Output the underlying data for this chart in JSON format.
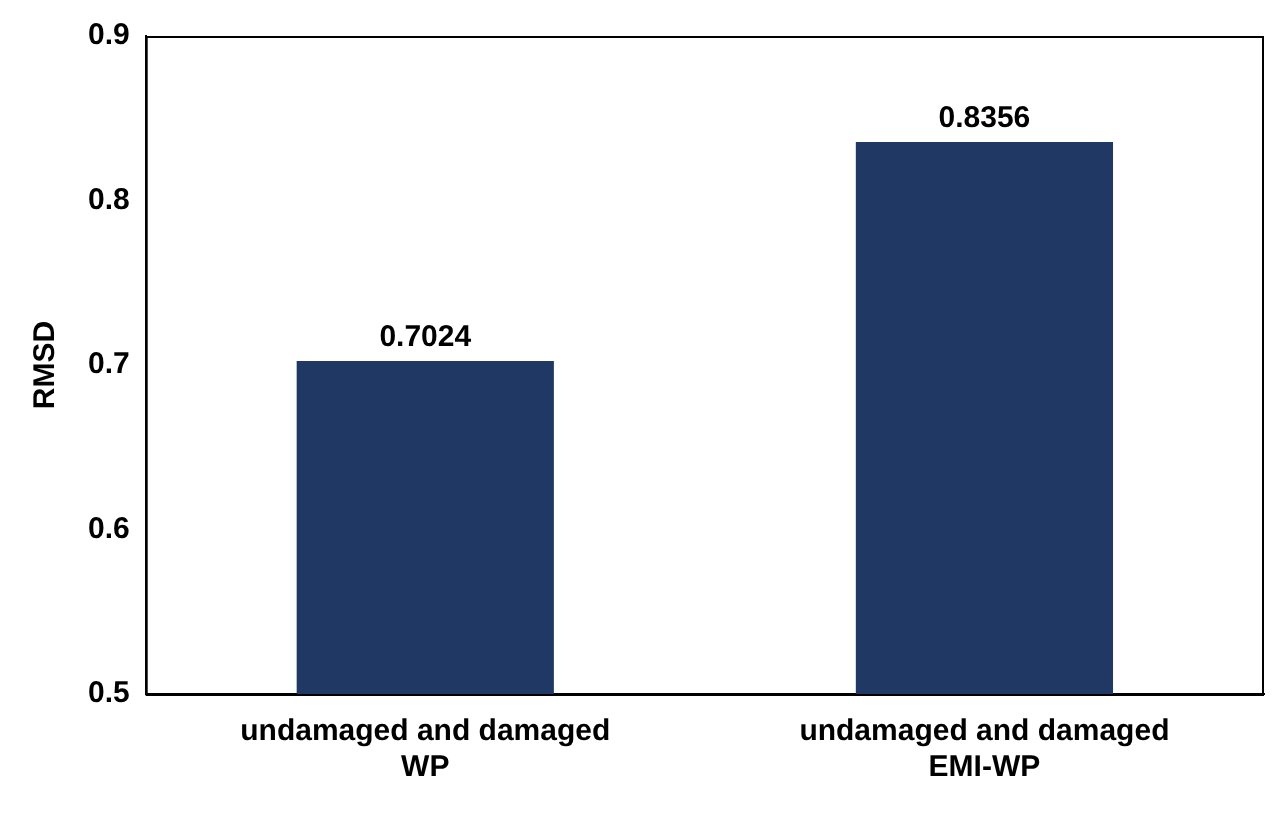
{
  "chart_data": {
    "type": "bar",
    "ylabel": "RMSD",
    "categories": [
      "undamaged and damaged WP",
      "undamaged and damaged EMI-WP"
    ],
    "values": [
      0.7024,
      0.8356
    ],
    "color": "#203864",
    "ylim": [
      0.5,
      0.9
    ],
    "yticks": [
      0.5,
      0.6,
      0.7,
      0.8,
      0.9
    ],
    "grid": false,
    "legend": false,
    "data_labels": true
  }
}
